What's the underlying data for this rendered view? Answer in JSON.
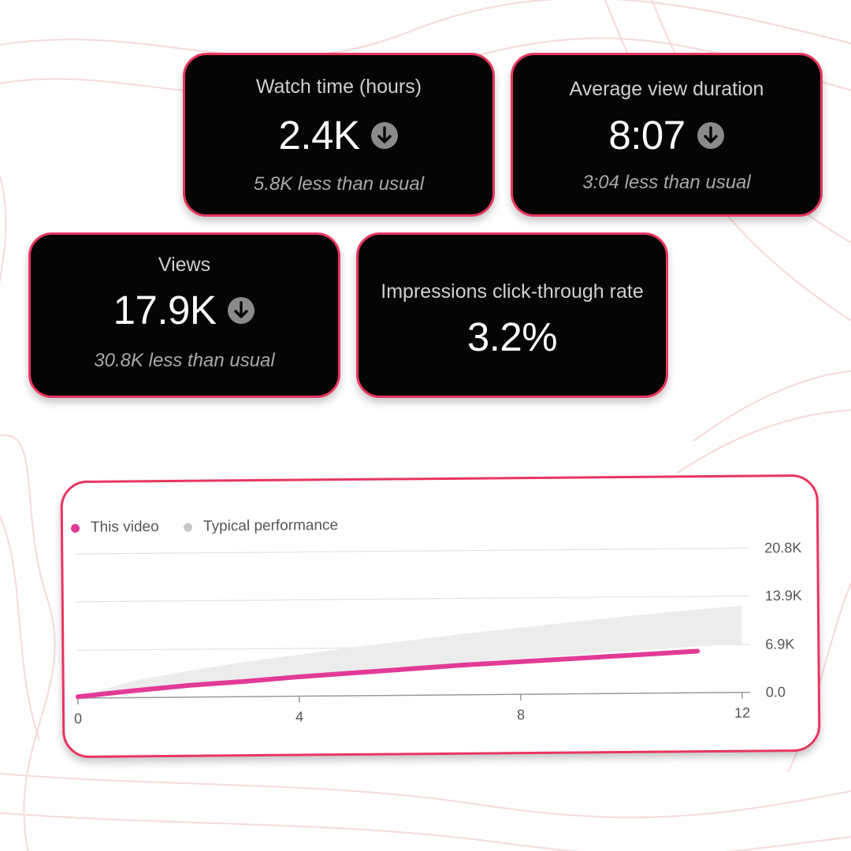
{
  "metrics": {
    "watch_time": {
      "title": "Watch time (hours)",
      "value": "2.4K",
      "comparison": "5.8K less than usual",
      "trend_icon": "arrow-down-circle-icon"
    },
    "avg_view_duration": {
      "title": "Average view duration",
      "value": "8:07",
      "comparison": "3:04 less than usual",
      "trend_icon": "arrow-down-circle-icon"
    },
    "views": {
      "title": "Views",
      "value": "17.9K",
      "comparison": "30.8K less than usual",
      "trend_icon": "arrow-down-circle-icon"
    },
    "ctr": {
      "title": "Impressions click-through rate",
      "value": "3.2%"
    }
  },
  "colors": {
    "card_border": "#e8365f",
    "this_video": "#e23a97",
    "typical_band": "#ececec",
    "typical_dot": "#c8c8c8"
  },
  "chart_data": {
    "type": "line",
    "legend_position": "top-left",
    "legend": [
      "This video",
      "Typical performance"
    ],
    "x_ticks": [
      "0",
      "4",
      "8",
      "12"
    ],
    "y_ticks": [
      "0.0",
      "6.9K",
      "13.9K",
      "20.8K"
    ],
    "xlim": [
      0,
      12
    ],
    "ylim": [
      0,
      20.8
    ],
    "grid": true,
    "series": [
      {
        "name": "This video",
        "x": [
          0,
          0.5,
          1,
          2,
          3,
          4,
          5,
          6,
          7,
          8,
          9,
          10,
          11.2
        ],
        "values": [
          0.2,
          0.6,
          1.0,
          1.7,
          2.2,
          2.8,
          3.3,
          3.8,
          4.3,
          4.7,
          5.1,
          5.5,
          6.0
        ]
      }
    ],
    "band": {
      "name": "Typical performance",
      "x": [
        0,
        1,
        2,
        3,
        4,
        5,
        6,
        7,
        8,
        9,
        10,
        11,
        12
      ],
      "lower": [
        0.2,
        1.0,
        1.7,
        2.3,
        2.9,
        3.5,
        4.0,
        4.6,
        5.1,
        5.6,
        6.1,
        6.6,
        7.0
      ],
      "upper": [
        0.2,
        2.4,
        3.8,
        5.0,
        6.0,
        7.0,
        7.9,
        8.8,
        9.6,
        10.4,
        11.2,
        11.9,
        12.5
      ]
    }
  }
}
